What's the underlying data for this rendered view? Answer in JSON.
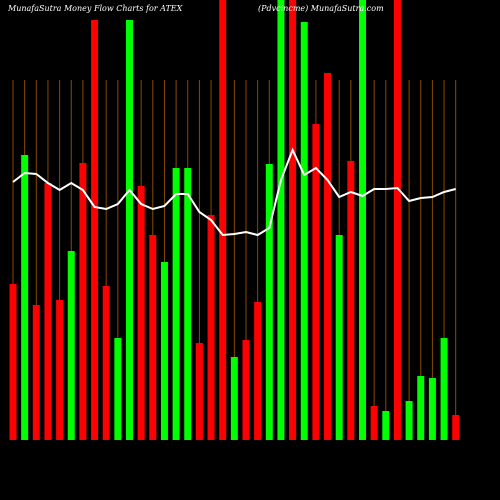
{
  "chart_data": {
    "type": "bar",
    "title": "MunafaSutra  Money Flow  Charts for ATEX",
    "subtitle": "(Pdvcincme) MunafaSutra.com",
    "ylim": [
      0,
      440
    ],
    "series": [
      {
        "type": "bar",
        "values": [
          156,
          285,
          135,
          257,
          140,
          189,
          277,
          420,
          154,
          102,
          420,
          254,
          205,
          178,
          272,
          272,
          97,
          225,
          440,
          83,
          100,
          138,
          276,
          440,
          440,
          418,
          316,
          367,
          205,
          279,
          440,
          34,
          29,
          440,
          39,
          64,
          62,
          102,
          25
        ],
        "colors": [
          "#ff0000",
          "#00ff00",
          "#ff0000",
          "#ff0000",
          "#ff0000",
          "#00ff00",
          "#ff0000",
          "#ff0000",
          "#ff0000",
          "#00ff00",
          "#00ff00",
          "#ff0000",
          "#ff0000",
          "#00ff00",
          "#00ff00",
          "#00ff00",
          "#ff0000",
          "#ff0000",
          "#ff0000",
          "#00ff00",
          "#ff0000",
          "#ff0000",
          "#00ff00",
          "#00ff00",
          "#ff0000",
          "#00ff00",
          "#ff0000",
          "#ff0000",
          "#00ff00",
          "#ff0000",
          "#00ff00",
          "#ff0000",
          "#00ff00",
          "#ff0000",
          "#00ff00",
          "#00ff00",
          "#00ff00",
          "#00ff00",
          "#ff0000"
        ]
      },
      {
        "type": "line",
        "color": "#ffffff",
        "values": [
          258,
          267,
          266,
          257,
          250,
          257,
          250,
          233,
          231,
          236,
          250,
          236,
          231,
          234,
          246,
          246,
          228,
          220,
          205,
          206,
          208,
          205,
          212,
          260,
          290,
          265,
          272,
          260,
          243,
          248,
          244,
          251,
          251,
          252,
          239,
          242,
          243,
          248,
          251
        ]
      }
    ]
  }
}
